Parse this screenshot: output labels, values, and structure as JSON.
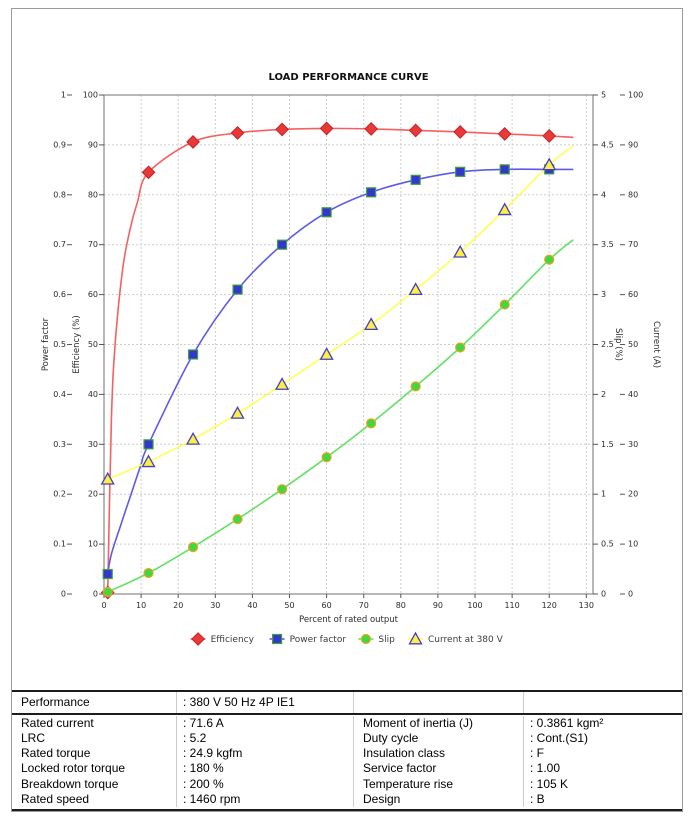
{
  "chart_data": {
    "type": "line",
    "title": "LOAD PERFORMANCE CURVE",
    "xlabel": "Percent of rated output",
    "x_axis": {
      "min": 0,
      "max_right_edge": 131.8,
      "ticks": [
        "0",
        "10",
        "20",
        "30",
        "40",
        "50",
        "60",
        "70",
        "80",
        "90",
        "100",
        "110",
        "120",
        "130"
      ]
    },
    "grid": true,
    "legend_position": "bottom",
    "axes": {
      "power_factor": {
        "label": "Power factor",
        "min": 0,
        "max": 1,
        "ticks": [
          "0",
          "0.1",
          "0.2",
          "0.3",
          "0.4",
          "0.5",
          "0.6",
          "0.7",
          "0.8",
          "0.9",
          "1"
        ]
      },
      "efficiency": {
        "label": "Efficiency (%)",
        "min": 0,
        "max": 100,
        "ticks": [
          "0",
          "10",
          "20",
          "30",
          "40",
          "50",
          "60",
          "70",
          "80",
          "90",
          "100"
        ]
      },
      "slip": {
        "label": "Slip (%)",
        "min": 0,
        "max": 5,
        "ticks": [
          "0",
          "0.5",
          "1",
          "1.5",
          "2",
          "2.5",
          "3",
          "3.5",
          "4",
          "4.5",
          "5"
        ]
      },
      "current": {
        "label": "Current (A)",
        "min": 0,
        "max": 100,
        "ticks": [
          "0",
          "10",
          "20",
          "30",
          "40",
          "50",
          "60",
          "70",
          "80",
          "90",
          "100"
        ]
      }
    },
    "series": [
      {
        "name": "Efficiency",
        "axis": "efficiency",
        "marker": "diamond",
        "line_color": "#f56060",
        "marker_fill": "#e93838",
        "marker_stroke": "#c62424",
        "x": [
          1,
          12,
          24,
          36,
          48,
          60,
          72,
          84,
          96,
          108,
          120
        ],
        "y": [
          0.3,
          84.5,
          90.6,
          92.4,
          93.1,
          93.3,
          93.2,
          92.9,
          92.6,
          92.2,
          91.8
        ],
        "curve_pre": [
          [
            2,
            35
          ],
          [
            3,
            50
          ],
          [
            5,
            65
          ],
          [
            7,
            73
          ],
          [
            9,
            78.5
          ]
        ],
        "curve_post": [
          [
            126.5,
            91.5
          ]
        ]
      },
      {
        "name": "Power factor",
        "axis": "power_factor",
        "marker": "square",
        "line_color": "#5b5be8",
        "marker_fill": "#3535cf",
        "marker_stroke": "#3da13d",
        "x": [
          1,
          12,
          24,
          36,
          48,
          60,
          72,
          84,
          96,
          108,
          120
        ],
        "y": [
          0.04,
          0.3,
          0.48,
          0.61,
          0.7,
          0.765,
          0.805,
          0.83,
          0.846,
          0.851,
          0.851
        ],
        "curve_pre": [
          [
            2,
            0.08
          ],
          [
            4.6,
            0.14
          ],
          [
            7.3,
            0.2
          ],
          [
            10,
            0.26
          ]
        ],
        "curve_post": [
          [
            126.5,
            0.851
          ]
        ]
      },
      {
        "name": "Slip",
        "axis": "slip",
        "marker": "circle",
        "line_color": "#62e162",
        "marker_fill": "#3fd83f",
        "marker_stroke": "#eda223",
        "x": [
          1,
          12,
          24,
          36,
          48,
          60,
          72,
          84,
          96,
          108,
          120
        ],
        "y": [
          0.02,
          0.21,
          0.47,
          0.75,
          1.05,
          1.37,
          1.71,
          2.08,
          2.47,
          2.9,
          3.35
        ],
        "curve_pre": [],
        "curve_post": [
          [
            126.5,
            3.55
          ]
        ]
      },
      {
        "name": "Current at 380 V",
        "axis": "current",
        "marker": "triangle",
        "line_color": "#ffff55",
        "marker_fill": "#ffee44",
        "marker_stroke": "#4040c8",
        "x": [
          1,
          12,
          24,
          36,
          48,
          60,
          72,
          84,
          96,
          108,
          120
        ],
        "y": [
          23,
          26.5,
          31,
          36.2,
          42,
          48,
          54,
          61,
          68.5,
          77,
          86
        ],
        "curve_pre": [],
        "curve_post": [
          [
            126.5,
            89.8
          ]
        ]
      }
    ]
  },
  "table": {
    "header": {
      "label": "Performance",
      "value": ": 380 V 50 Hz 4P IE1"
    },
    "rows": [
      {
        "c0": "Rated current",
        "c1": ": 71.6 A",
        "c2": "Moment of inertia (J)",
        "c3": ": 0.3861 kgm²"
      },
      {
        "c0": "LRC",
        "c1": ": 5.2",
        "c2": "Duty cycle",
        "c3": ": Cont.(S1)"
      },
      {
        "c0": "Rated torque",
        "c1": ": 24.9 kgfm",
        "c2": "Insulation class",
        "c3": ": F"
      },
      {
        "c0": "Locked rotor torque",
        "c1": ": 180 %",
        "c2": "Service factor",
        "c3": ": 1.00"
      },
      {
        "c0": "Breakdown torque",
        "c1": ": 200 %",
        "c2": "Temperature rise",
        "c3": ": 105 K"
      },
      {
        "c0": "Rated speed",
        "c1": ": 1460 rpm",
        "c2": "Design",
        "c3": ": B"
      }
    ]
  },
  "colors": {
    "grid": "#cdcdcd",
    "plot_border": "#888888",
    "tick_text": "#2b2b2b",
    "title_text": "#111111",
    "legend_text": "#3c3c3c",
    "table_border": "#1c1c1c",
    "table_divider": "#cccccc"
  }
}
